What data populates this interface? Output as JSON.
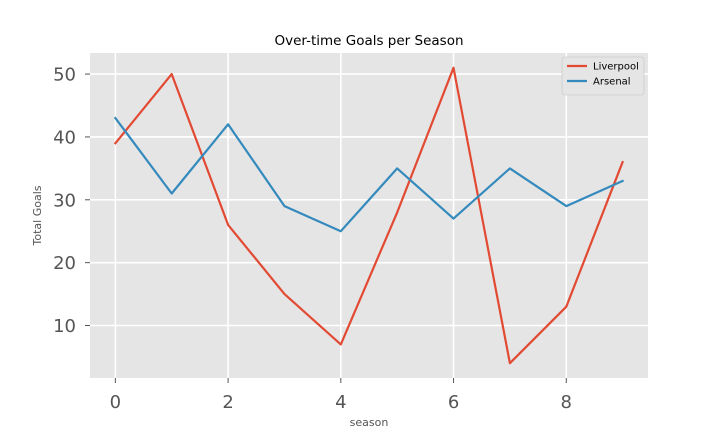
{
  "chart_data": {
    "type": "line",
    "title": "Over-time Goals per Season",
    "xlabel": "season",
    "ylabel": "Total Goals",
    "x": [
      0,
      1,
      2,
      3,
      4,
      5,
      6,
      7,
      8,
      9
    ],
    "xlim": [
      -0.45,
      9.45
    ],
    "ylim": [
      1.65,
      53.35
    ],
    "xticks": [
      0,
      2,
      4,
      6,
      8
    ],
    "yticks": [
      10,
      20,
      30,
      40,
      50
    ],
    "grid": true,
    "legend_position": "top-right",
    "background": "#e5e5e5",
    "series": [
      {
        "name": "Liverpool",
        "color": "#e24a33",
        "values": [
          39,
          50,
          26,
          15,
          7,
          28,
          51,
          4,
          13,
          36
        ]
      },
      {
        "name": "Arsenal",
        "color": "#348abd",
        "values": [
          43,
          31,
          42,
          29,
          25,
          35,
          27,
          35,
          29,
          33
        ]
      }
    ]
  }
}
